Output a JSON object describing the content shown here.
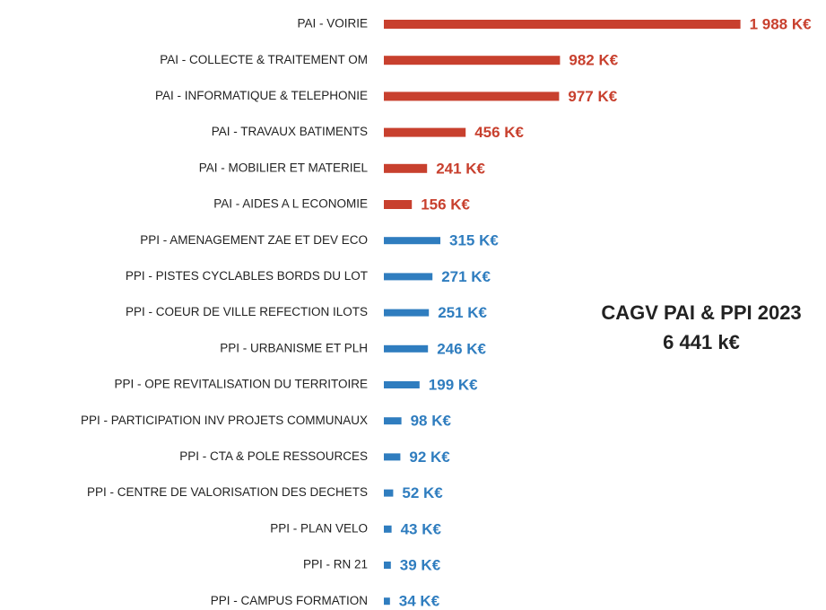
{
  "chart_data": {
    "type": "hbar",
    "categories": [
      "PAI - VOIRIE",
      "PAI - COLLECTE & TRAITEMENT OM",
      "PAI - INFORMATIQUE & TELEPHONIE",
      "PAI - TRAVAUX BATIMENTS",
      "PAI - MOBILIER ET MATERIEL",
      "PAI - AIDES A L ECONOMIE",
      "PPI - AMENAGEMENT ZAE ET DEV ECO",
      "PPI - PISTES CYCLABLES BORDS DU LOT",
      "PPI - COEUR DE VILLE REFECTION ILOTS",
      "PPI - URBANISME ET PLH",
      "PPI - OPE REVITALISATION DU TERRITOIRE",
      "PPI - PARTICIPATION INV PROJETS COMMUNAUX",
      "PPI - CTA & POLE RESSOURCES",
      "PPI - CENTRE DE VALORISATION DES DECHETS",
      "PPI - PLAN VELO",
      "PPI - RN 21",
      "PPI - CAMPUS FORMATION"
    ],
    "values": [
      1988,
      982,
      977,
      456,
      241,
      156,
      315,
      271,
      251,
      246,
      199,
      98,
      92,
      52,
      43,
      39,
      34
    ],
    "value_labels": [
      "1 988 K€",
      "982 K€",
      "977 K€",
      "456 K€",
      "241 K€",
      "156 K€",
      "315 K€",
      "271 K€",
      "251 K€",
      "246 K€",
      "199 K€",
      "98 K€",
      "92 K€",
      "52 K€",
      "43 K€",
      "39 K€",
      "34 K€"
    ],
    "colors": [
      "#c8402e",
      "#c8402e",
      "#c8402e",
      "#c8402e",
      "#c8402e",
      "#c8402e",
      "#2f7dbf",
      "#2f7dbf",
      "#2f7dbf",
      "#2f7dbf",
      "#2f7dbf",
      "#2f7dbf",
      "#2f7dbf",
      "#2f7dbf",
      "#2f7dbf",
      "#2f7dbf",
      "#2f7dbf"
    ],
    "xlim": [
      0,
      2000
    ],
    "annotations": [
      "CAGV PAI & PPI 2023",
      "6 441 k€"
    ]
  }
}
